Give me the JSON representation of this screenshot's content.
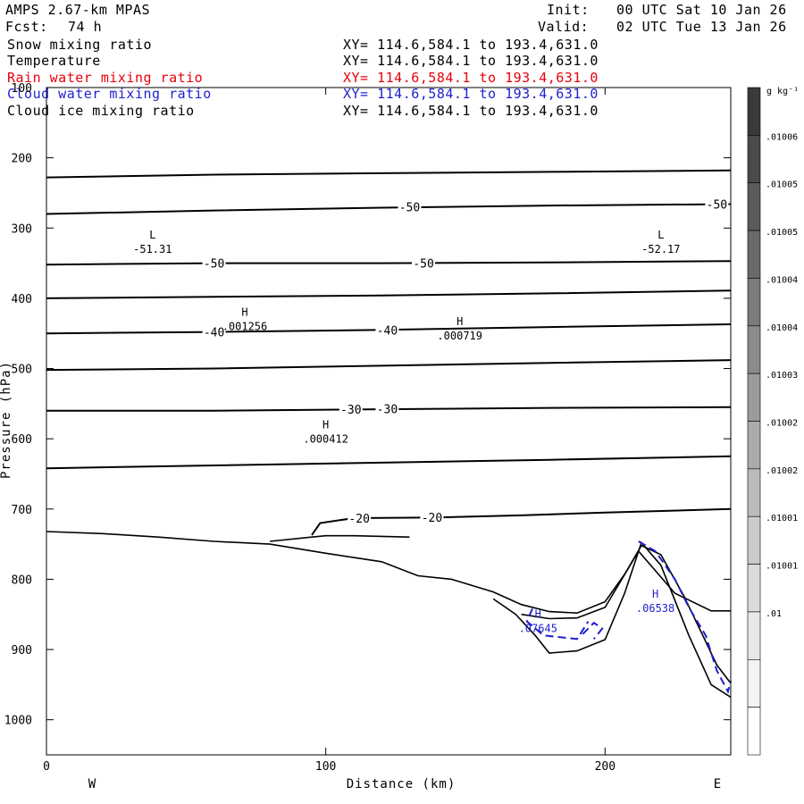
{
  "header": {
    "model": "AMPS 2.67-km MPAS",
    "fcst_label": "Fcst:",
    "fcst_value": "74 h",
    "init_label": "Init:",
    "init_value": "00 UTC Sat 10 Jan 26",
    "valid_label": "Valid:",
    "valid_value": "02 UTC Tue 13 Jan 26"
  },
  "fields": [
    {
      "name": "Snow mixing ratio",
      "xy": "XY= 114.6,584.1 to 193.4,631.0",
      "color": "#000000"
    },
    {
      "name": "Temperature",
      "xy": "XY= 114.6,584.1 to 193.4,631.0",
      "color": "#000000"
    },
    {
      "name": "Rain water mixing ratio",
      "xy": "XY= 114.6,584.1 to 193.4,631.0",
      "color": "#e8000b"
    },
    {
      "name": "Cloud water mixing ratio",
      "xy": "XY= 114.6,584.1 to 193.4,631.0",
      "color": "#1f1fd0"
    },
    {
      "name": "Cloud ice mixing ratio",
      "xy": "XY= 114.6,584.1 to 193.4,631.0",
      "color": "#000000"
    }
  ],
  "chart_data": {
    "type": "line",
    "subtype": "vertical cross-section",
    "xlabel": "Distance (km)",
    "ylabel": "Pressure (hPa)",
    "xlim": [
      0,
      245
    ],
    "ylim": [
      1050,
      100
    ],
    "xticks": [
      0,
      100,
      200
    ],
    "yticks": [
      100,
      200,
      300,
      400,
      500,
      600,
      700,
      800,
      900,
      1000
    ],
    "x_endpoints": {
      "left": "W",
      "right": "E"
    },
    "temperature_contours": [
      {
        "label": "",
        "points": [
          [
            0,
            228
          ],
          [
            60,
            224
          ],
          [
            120,
            222
          ],
          [
            180,
            220
          ],
          [
            245,
            218
          ]
        ]
      },
      {
        "label": "-50",
        "points": [
          [
            0,
            280
          ],
          [
            60,
            275
          ],
          [
            120,
            271
          ],
          [
            180,
            268
          ],
          [
            245,
            266
          ]
        ]
      },
      {
        "label": "-50",
        "points": [
          [
            0,
            352
          ],
          [
            60,
            350
          ],
          [
            120,
            350
          ],
          [
            180,
            349
          ],
          [
            245,
            347
          ]
        ]
      },
      {
        "label": "",
        "points": [
          [
            0,
            400
          ],
          [
            60,
            398
          ],
          [
            120,
            396
          ],
          [
            180,
            393
          ],
          [
            245,
            389
          ]
        ]
      },
      {
        "label": "-40",
        "points": [
          [
            0,
            450
          ],
          [
            60,
            448
          ],
          [
            120,
            445
          ],
          [
            180,
            441
          ],
          [
            245,
            437
          ]
        ]
      },
      {
        "label": "",
        "points": [
          [
            0,
            502
          ],
          [
            60,
            500
          ],
          [
            120,
            496
          ],
          [
            180,
            492
          ],
          [
            245,
            488
          ]
        ]
      },
      {
        "label": "-30",
        "points": [
          [
            0,
            560
          ],
          [
            60,
            560
          ],
          [
            120,
            558
          ],
          [
            180,
            556
          ],
          [
            245,
            555
          ]
        ]
      },
      {
        "label": "",
        "points": [
          [
            0,
            642
          ],
          [
            60,
            638
          ],
          [
            120,
            634
          ],
          [
            180,
            630
          ],
          [
            245,
            625
          ]
        ]
      },
      {
        "label": "-20",
        "points": [
          [
            95,
            737
          ],
          [
            98,
            720
          ],
          [
            110,
            713
          ],
          [
            140,
            712
          ],
          [
            170,
            709
          ],
          [
            200,
            705
          ],
          [
            245,
            700
          ]
        ]
      }
    ],
    "contour_labels": [
      {
        "text": "-50",
        "x": 130,
        "p": 270
      },
      {
        "text": "-50",
        "x": 240,
        "p": 266
      },
      {
        "text": "-50",
        "x": 60,
        "p": 350
      },
      {
        "text": "-50",
        "x": 135,
        "p": 350
      },
      {
        "text": "-40",
        "x": 60,
        "p": 448
      },
      {
        "text": "-40",
        "x": 122,
        "p": 445
      },
      {
        "text": "-30",
        "x": 109,
        "p": 558
      },
      {
        "text": "-30",
        "x": 122,
        "p": 557
      },
      {
        "text": "-20",
        "x": 112,
        "p": 713
      },
      {
        "text": "-20",
        "x": 138,
        "p": 712
      }
    ],
    "terrain_outline": [
      [
        0,
        732
      ],
      [
        20,
        735
      ],
      [
        40,
        740
      ],
      [
        60,
        746
      ],
      [
        80,
        750
      ],
      [
        100,
        763
      ],
      [
        120,
        775
      ],
      [
        133,
        795
      ],
      [
        145,
        800
      ],
      [
        160,
        818
      ],
      [
        170,
        836
      ],
      [
        180,
        846
      ],
      [
        190,
        848
      ],
      [
        200,
        832
      ],
      [
        207,
        793
      ],
      [
        213,
        752
      ],
      [
        220,
        765
      ],
      [
        228,
        822
      ],
      [
        235,
        880
      ],
      [
        240,
        922
      ],
      [
        245,
        948
      ]
    ],
    "lower_outline": [
      [
        80,
        746
      ],
      [
        95,
        740
      ],
      [
        100,
        738
      ],
      [
        110,
        738
      ],
      [
        130,
        740
      ]
    ],
    "ridge_lower_surface": [
      [
        160,
        828
      ],
      [
        168,
        850
      ],
      [
        175,
        880
      ],
      [
        180,
        905
      ],
      [
        190,
        902
      ],
      [
        200,
        886
      ],
      [
        207,
        820
      ],
      [
        213,
        748
      ],
      [
        220,
        780
      ],
      [
        230,
        880
      ],
      [
        238,
        950
      ],
      [
        245,
        968
      ]
    ],
    "snow_contour": [
      [
        170,
        850
      ],
      [
        180,
        856
      ],
      [
        190,
        855
      ],
      [
        200,
        840
      ],
      [
        212,
        760
      ],
      [
        225,
        820
      ],
      [
        238,
        845
      ],
      [
        245,
        845
      ]
    ],
    "cloud_water_contours": [
      {
        "points": [
          [
            174,
            842
          ],
          [
            172,
            860
          ],
          [
            178,
            880
          ],
          [
            190,
            885
          ],
          [
            194,
            860
          ]
        ]
      },
      {
        "points": [
          [
            192,
            878
          ],
          [
            196,
            862
          ],
          [
            199,
            870
          ],
          [
            196,
            885
          ]
        ]
      },
      {
        "points": [
          [
            212,
            746
          ],
          [
            218,
            760
          ],
          [
            225,
            800
          ],
          [
            230,
            840
          ],
          [
            236,
            880
          ],
          [
            240,
            930
          ],
          [
            244,
            960
          ],
          [
            245,
            945
          ]
        ]
      }
    ],
    "extrema": [
      {
        "type": "L",
        "value": "-51.31",
        "x": 38,
        "p": 315
      },
      {
        "type": "L",
        "value": "-52.17",
        "x": 220,
        "p": 315
      },
      {
        "type": "H",
        "value": ".001256",
        "x": 71,
        "p": 425
      },
      {
        "type": "H",
        "value": ".000719",
        "x": 148,
        "p": 438
      },
      {
        "type": "H",
        "value": ".000412",
        "x": 100,
        "p": 585
      },
      {
        "type": "H",
        "value": ".07645",
        "x": 176,
        "p": 855,
        "color": "#1f1fd0"
      },
      {
        "type": "H",
        "value": ".06538",
        "x": 218,
        "p": 826,
        "color": "#1f1fd0"
      }
    ],
    "colorbar": {
      "unit": "g kg⁻¹",
      "labels": [
        ".01006",
        ".01005",
        ".01005",
        ".01004",
        ".01004",
        ".01003",
        ".01002",
        ".01002",
        ".01001",
        ".01001",
        ".01"
      ],
      "colors": [
        "#3a3a3a",
        "#4a4a4a",
        "#5a5a5a",
        "#6a6a6a",
        "#7b7b7b",
        "#8b8b8b",
        "#9b9b9b",
        "#ababab",
        "#bbbbbb",
        "#cbcbcb",
        "#dbdbdb",
        "#e8e8e8",
        "#f3f3f3",
        "#ffffff"
      ]
    }
  }
}
